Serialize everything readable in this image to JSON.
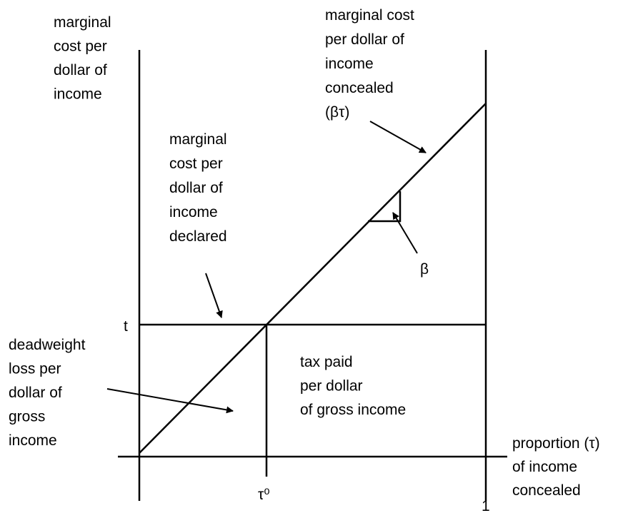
{
  "labels": {
    "y_axis": [
      "marginal",
      "cost per",
      "dollar of",
      "income"
    ],
    "concealed": [
      "marginal cost",
      "per dollar of",
      "income",
      "concealed",
      "(βτ)"
    ],
    "declared": [
      "marginal",
      "cost per",
      "dollar of",
      "income",
      "declared"
    ],
    "beta": "β",
    "t": "t",
    "deadweight": [
      "deadweight",
      "loss per",
      "dollar of",
      "gross",
      "income"
    ],
    "tax_paid": [
      "tax paid",
      "per dollar",
      "of gross income"
    ],
    "x_axis": [
      "proportion (τ)",
      "of income",
      "concealed"
    ],
    "tau0": "τ⁰",
    "one": "1"
  }
}
